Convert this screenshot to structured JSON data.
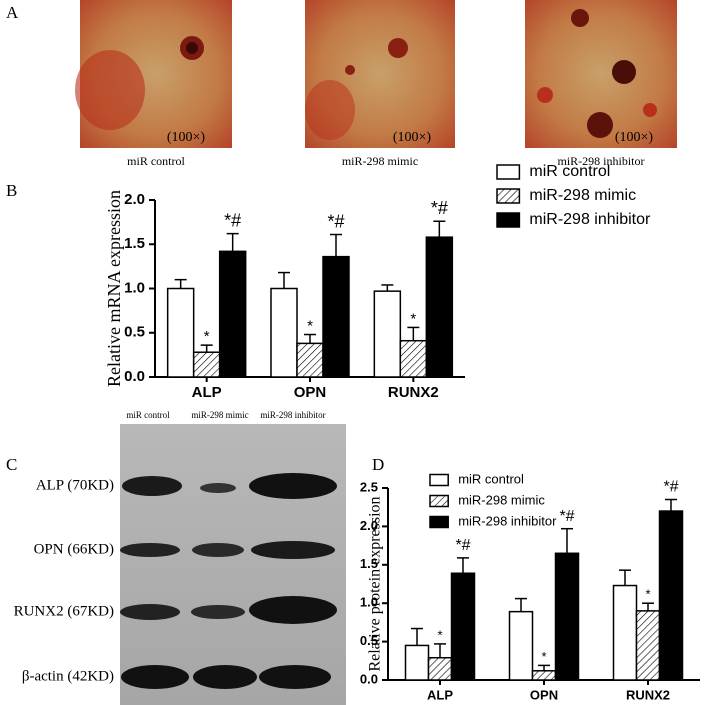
{
  "panels": {
    "a": {
      "label": "A",
      "captions": [
        "miR control",
        "miR-298 mimic",
        "miR-298 inhibitor"
      ],
      "magnifications": [
        "(100×)",
        "(100×)",
        "(100×)"
      ]
    },
    "b": {
      "label": "B"
    },
    "c": {
      "label": "C",
      "lanes": [
        "miR control",
        "miR-298 mimic",
        "miR-298 inhibitor"
      ],
      "rows": [
        "ALP (70KD)",
        "OPN (66KD)",
        "RUNX2 (67KD)",
        "β-actin (42KD)"
      ]
    },
    "d": {
      "label": "D"
    }
  },
  "chart_data": [
    {
      "type": "bar",
      "y_label": "Relative mRNA expression",
      "categories": [
        "ALP",
        "OPN",
        "RUNX2"
      ],
      "series": [
        {
          "name": "miR control",
          "color": "#ffffff",
          "pattern": "solid",
          "values": [
            1.0,
            1.0,
            0.97
          ],
          "errors": [
            0.1,
            0.18,
            0.07
          ]
        },
        {
          "name": "miR-298 mimic",
          "color": "#ffffff",
          "pattern": "hatch",
          "values": [
            0.28,
            0.38,
            0.41
          ],
          "errors": [
            0.08,
            0.1,
            0.15
          ],
          "annotations": [
            "*",
            "*",
            "*"
          ]
        },
        {
          "name": "miR-298 inhibitor",
          "color": "#000000",
          "pattern": "solid",
          "values": [
            1.42,
            1.36,
            1.58
          ],
          "errors": [
            0.2,
            0.25,
            0.18
          ],
          "annotations": [
            "*#",
            "*#",
            "*#"
          ]
        }
      ],
      "ylim": [
        0,
        2
      ],
      "yticks": [
        {
          "value": 0,
          "label": "0.0"
        },
        0.5,
        {
          "value": 1,
          "label": "1.0"
        },
        1.5,
        {
          "value": 2,
          "label": "2.0"
        }
      ]
    },
    {
      "type": "bar",
      "y_label": "Relative protein expression",
      "categories": [
        "ALP",
        "OPN",
        "RUNX2"
      ],
      "series": [
        {
          "name": "miR control",
          "color": "#ffffff",
          "pattern": "solid",
          "values": [
            0.45,
            0.89,
            1.23
          ],
          "errors": [
            0.22,
            0.17,
            0.2
          ]
        },
        {
          "name": "miR-298 mimic",
          "color": "#ffffff",
          "pattern": "hatch",
          "values": [
            0.29,
            0.12,
            0.9
          ],
          "errors": [
            0.18,
            0.07,
            0.1
          ],
          "annotations": [
            "*",
            "*",
            "*"
          ]
        },
        {
          "name": "miR-298 inhibitor",
          "color": "#000000",
          "pattern": "solid",
          "values": [
            1.39,
            1.65,
            2.2
          ],
          "errors": [
            0.2,
            0.32,
            0.15
          ],
          "annotations": [
            "*#",
            "*#",
            "*#"
          ]
        }
      ],
      "ylim": [
        0,
        2.5
      ],
      "yticks": [
        {
          "value": 0,
          "label": "0.0"
        },
        0.5,
        {
          "value": 1,
          "label": "1.0"
        },
        1.5,
        {
          "value": 2,
          "label": "2.0"
        },
        2.5
      ]
    }
  ]
}
